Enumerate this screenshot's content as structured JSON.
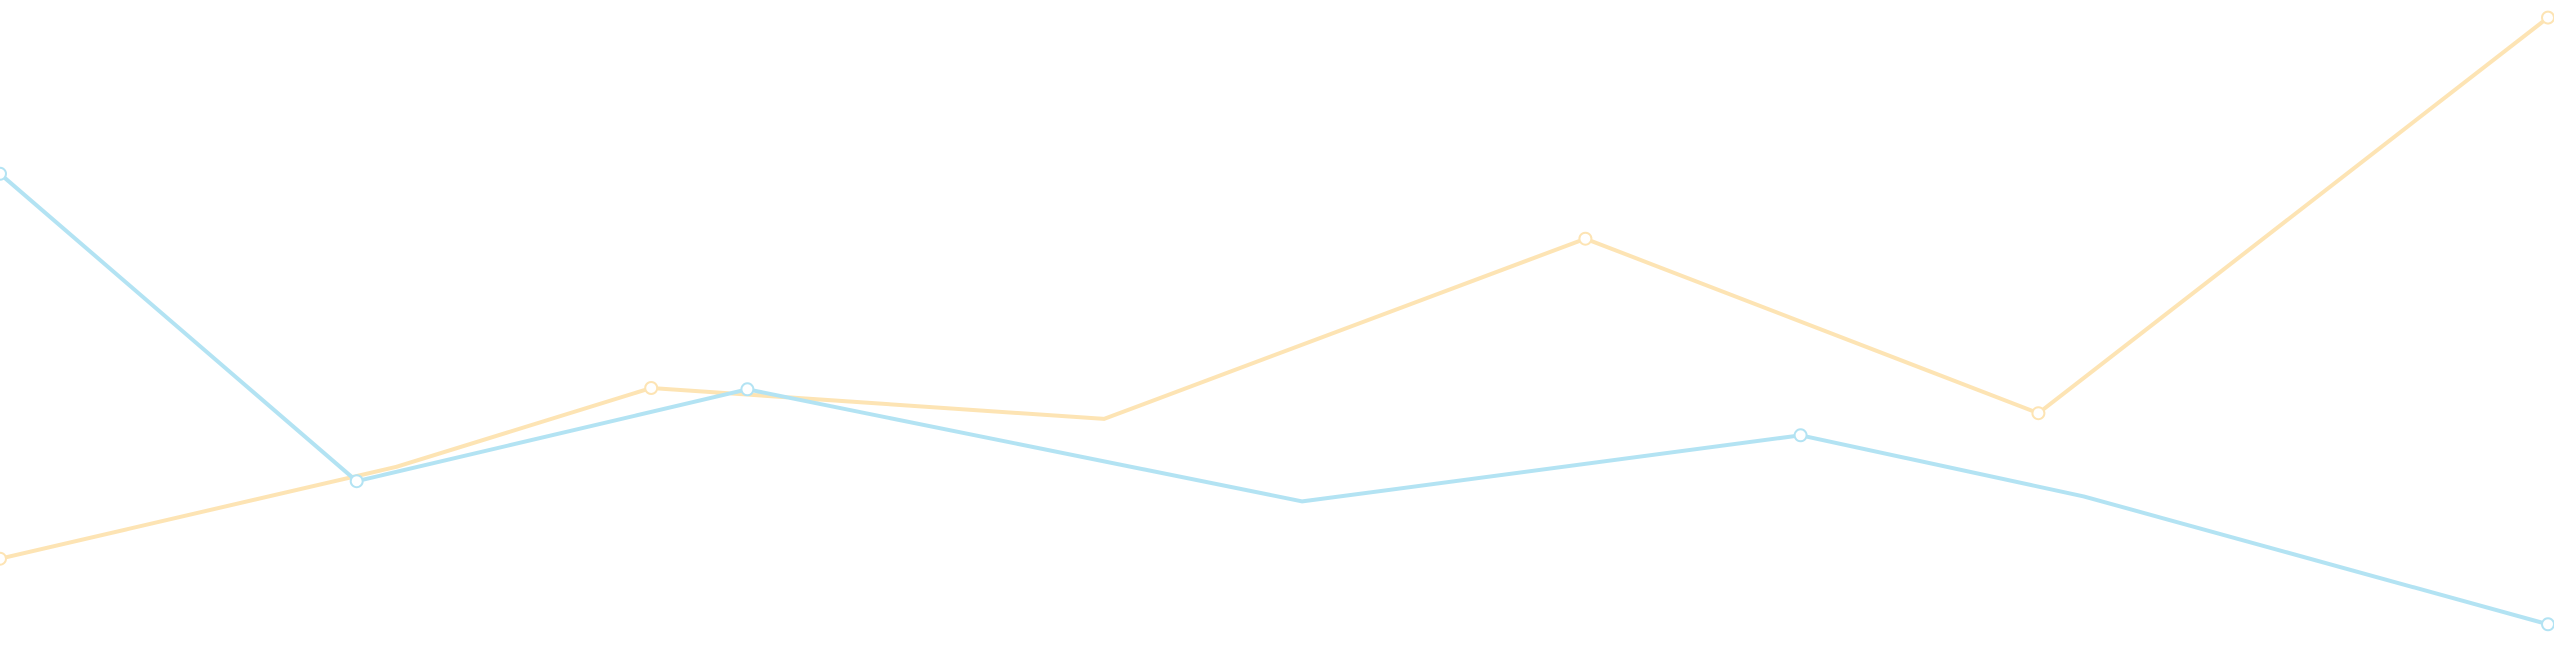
{
  "chart_data": {
    "type": "line",
    "x": [
      0,
      1,
      2,
      3,
      4,
      5,
      6,
      7
    ],
    "ylim": [
      0,
      100
    ],
    "grid": false,
    "legend": "none",
    "series": [
      {
        "color": "#fde4b4",
        "values": [
          12.9,
          27.5,
          40.0,
          35.1,
          63.7,
          36.0,
          98.8
        ],
        "x": [
          0,
          0.7,
          1.15,
          1.95,
          2.8,
          3.6,
          4.5
        ],
        "marker_x": [
          0,
          1.15,
          2.8,
          3.6,
          4.5
        ],
        "marker_values": [
          12.9,
          40.0,
          63.7,
          36.0,
          98.8
        ]
      },
      {
        "color": "#b3e3f3",
        "values": [
          74.0,
          25.2,
          39.8,
          22.0,
          32.5,
          22.8,
          2.5
        ],
        "x": [
          0,
          0.63,
          1.32,
          2.3,
          3.18,
          3.68,
          4.5
        ],
        "marker_x": [
          0,
          0.63,
          1.32,
          3.18,
          4.5
        ],
        "marker_values": [
          74.0,
          25.2,
          39.8,
          32.5,
          2.5
        ]
      }
    ]
  }
}
